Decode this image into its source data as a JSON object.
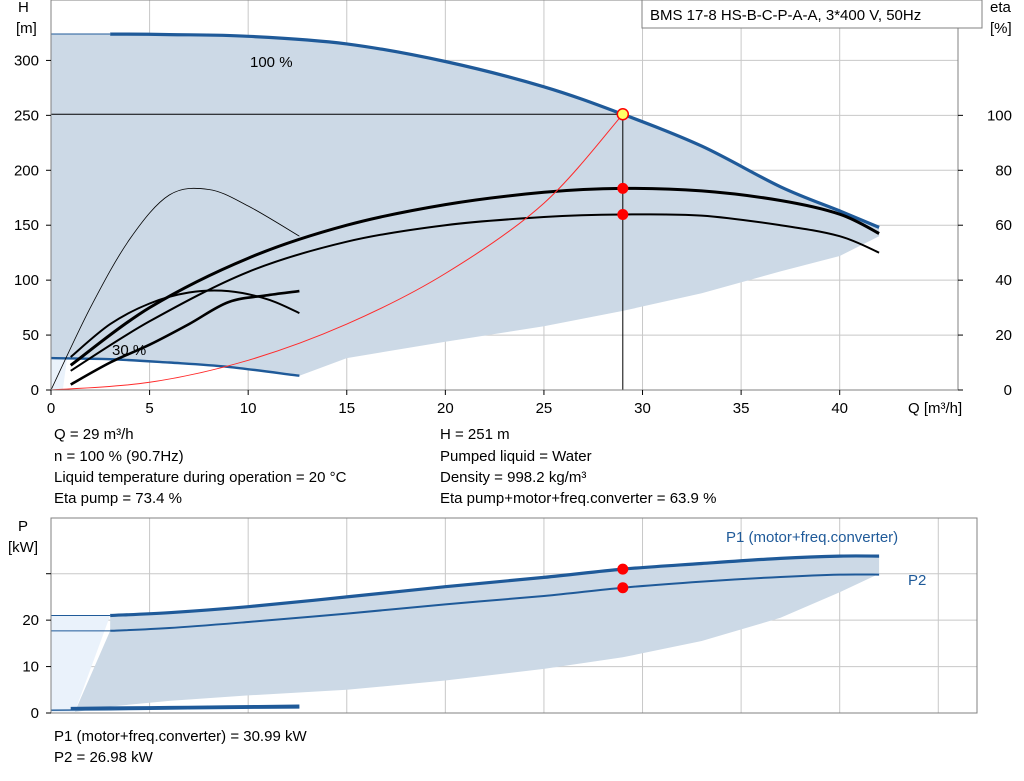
{
  "product": "BMS 17-8 HS-B-C-P-A-A, 3*400 V, 50Hz",
  "colors": {
    "envelope": "#ccd9e6",
    "envelope_light": "#eaf2fb",
    "curve_blue": "#1f5a99",
    "curve_black": "#000000",
    "system_curve": "#ff2a2a",
    "duty_point": "#ff0000",
    "duty_point_fill": "#ffff66",
    "grid": "#c8c8c8"
  },
  "chart_data": [
    {
      "type": "line",
      "name": "qh",
      "ylabel": "H\n[m]",
      "y2label": "eta\n[%]",
      "xlabel": "Q [m³/h]",
      "xlim": [
        0,
        46
      ],
      "ylim": [
        0,
        355
      ],
      "y2lim": [
        0,
        142
      ],
      "xticks": [
        0,
        5,
        10,
        15,
        20,
        25,
        30,
        35,
        40
      ],
      "yticks": [
        0,
        50,
        100,
        150,
        200,
        250,
        300
      ],
      "y2ticks": [
        0,
        20,
        40,
        60,
        80,
        100
      ],
      "curve_labels": [
        "100 %",
        "30 %"
      ],
      "series": [
        {
          "role": "head-100",
          "x": [
            3,
            6,
            10,
            15,
            20,
            25,
            29,
            33,
            37,
            40,
            42
          ],
          "y": [
            324,
            323.5,
            322,
            315,
            299,
            276,
            251,
            222,
            185,
            163,
            148
          ]
        },
        {
          "role": "head-30",
          "x": [
            0,
            3,
            6,
            9,
            12.6
          ],
          "y": [
            29,
            28,
            25,
            21,
            13
          ]
        },
        {
          "role": "eta-pump",
          "x": [
            1,
            5,
            10,
            15,
            20,
            25,
            29,
            33,
            37,
            40,
            42
          ],
          "y": [
            9,
            30,
            48,
            60,
            67.5,
            72,
            73.4,
            72.5,
            69,
            64,
            57
          ]
        },
        {
          "role": "eta-total",
          "x": [
            1,
            5,
            10,
            15,
            20,
            25,
            29,
            33,
            37,
            40,
            42
          ],
          "y": [
            7,
            25,
            43,
            54,
            60,
            63,
            63.9,
            63.5,
            60,
            56,
            50
          ]
        },
        {
          "role": "eta-pump-30",
          "x": [
            1,
            3,
            5,
            7,
            9,
            11,
            12.6
          ],
          "y": [
            12,
            24,
            31.5,
            35.5,
            36,
            33,
            28
          ]
        },
        {
          "role": "eta-total-30",
          "x": [
            1,
            3,
            5,
            7,
            9,
            11,
            12.6
          ],
          "y": [
            2,
            10,
            16.5,
            24,
            32,
            34.5,
            36
          ]
        },
        {
          "role": "eta-thin",
          "x": [
            0,
            2,
            4,
            6,
            8,
            10,
            12.6
          ],
          "y": [
            0,
            30,
            55,
            71,
            73,
            67,
            56
          ]
        },
        {
          "role": "system-curve",
          "x": [
            0,
            5,
            10,
            15,
            20,
            25,
            29
          ],
          "y": [
            0,
            7,
            27,
            60,
            106,
            170,
            251
          ]
        }
      ],
      "envelope": {
        "top_x": [
          0,
          3,
          6,
          10,
          15,
          20,
          25,
          29,
          33,
          37,
          40,
          42
        ],
        "top_y": [
          324,
          324,
          323.5,
          322,
          315,
          299,
          276,
          251,
          222,
          185,
          163,
          148
        ],
        "bottom_x": [
          42,
          40,
          37,
          33,
          29,
          25,
          20,
          15,
          12.6,
          9,
          6,
          3,
          0
        ],
        "bottom_y": [
          140,
          122,
          108,
          88,
          72,
          58,
          44,
          29,
          13,
          21,
          25,
          28,
          29
        ]
      },
      "duty_point": {
        "Q": 29,
        "H": 251,
        "eta_pump": 73.4,
        "eta_total": 63.9
      }
    },
    {
      "type": "line",
      "name": "power",
      "ylabel": "P\n[kW]",
      "xlim": [
        0,
        46
      ],
      "ylim": [
        0,
        42
      ],
      "yticks": [
        0,
        10,
        20
      ],
      "labels": [
        "P1 (motor+freq.converter)",
        "P2"
      ],
      "series": [
        {
          "role": "P1",
          "x": [
            3,
            6,
            10,
            15,
            20,
            25,
            29,
            33,
            37,
            40,
            42
          ],
          "y": [
            21,
            21.6,
            22.9,
            25,
            27.2,
            29.2,
            30.99,
            32.2,
            33.3,
            33.8,
            33.8
          ]
        },
        {
          "role": "P2",
          "x": [
            3,
            6,
            10,
            15,
            20,
            25,
            29,
            33,
            37,
            40,
            42
          ],
          "y": [
            17.7,
            18.3,
            19.6,
            21.4,
            23.4,
            25.2,
            26.98,
            28.3,
            29.3,
            29.8,
            29.8
          ]
        },
        {
          "role": "P1-30",
          "x": [
            1,
            3,
            6,
            9,
            12.6
          ],
          "y": [
            1,
            1.1,
            1.2,
            1.35,
            1.5
          ]
        },
        {
          "role": "P2-30",
          "x": [
            0,
            3,
            6,
            9,
            12.6
          ],
          "y": [
            0.6,
            0.7,
            0.85,
            1.0,
            1.1
          ]
        }
      ],
      "duty_point": {
        "Q": 29,
        "P1": 30.99,
        "P2": 26.98
      }
    }
  ],
  "results_left": [
    "Q = 29 m³/h",
    "n = 100 % (90.7Hz)",
    "Liquid temperature during operation = 20 °C",
    "Eta pump = 73.4 %"
  ],
  "results_right": [
    "H = 251 m",
    "Pumped liquid = Water",
    "Density = 998.2 kg/m³",
    "Eta pump+motor+freq.converter = 63.9 %"
  ],
  "results_power": [
    "P1 (motor+freq.converter) = 30.99 kW",
    "P2 = 26.98 kW"
  ]
}
